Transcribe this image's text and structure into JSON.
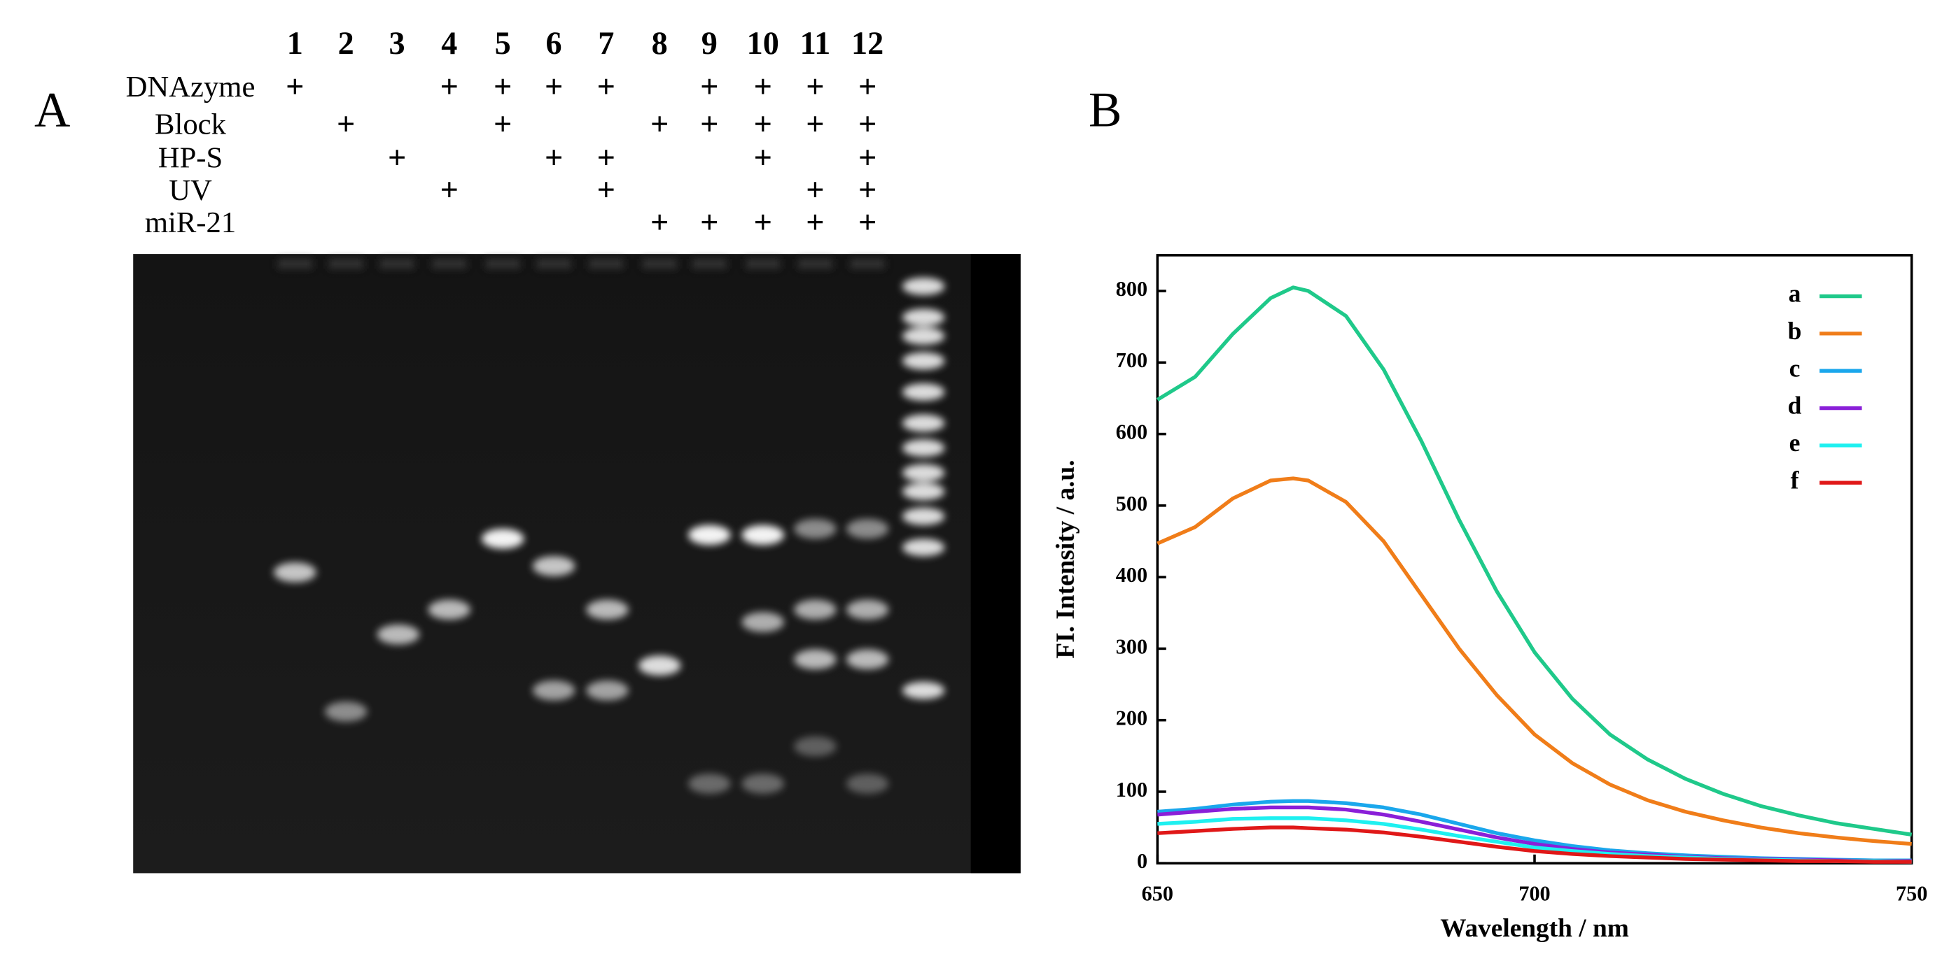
{
  "panel_labels": [
    "A",
    "B"
  ],
  "gel": {
    "lanes": [
      "1",
      "2",
      "3",
      "4",
      "5",
      "6",
      "7",
      "8",
      "9",
      "10",
      "11",
      "12"
    ],
    "rows": [
      {
        "name": "DNAzyme",
        "marks": [
          "+",
          null,
          null,
          "+",
          "+",
          "+",
          "+",
          null,
          "+",
          "+",
          "+",
          "+"
        ]
      },
      {
        "name": "Block",
        "marks": [
          null,
          "+",
          null,
          null,
          "+",
          null,
          null,
          "+",
          "+",
          "+",
          "+",
          "+"
        ]
      },
      {
        "name": "HP-S",
        "marks": [
          null,
          null,
          "+",
          null,
          null,
          "+",
          "+",
          null,
          null,
          "+",
          null,
          "+"
        ]
      },
      {
        "name": "UV",
        "marks": [
          null,
          null,
          null,
          "+",
          null,
          null,
          "+",
          null,
          null,
          null,
          "+",
          "+"
        ]
      },
      {
        "name": "miR-21",
        "marks": [
          null,
          null,
          null,
          null,
          null,
          null,
          null,
          "+",
          "+",
          "+",
          "+",
          "+"
        ]
      }
    ]
  },
  "chart_data": {
    "type": "line",
    "xlabel": "Wavelength / nm",
    "ylabel": "FI. Intensity / a.u.",
    "xlim": [
      650,
      750
    ],
    "ylim": [
      0,
      850
    ],
    "xticks": [
      650,
      700,
      750
    ],
    "yticks": [
      0,
      100,
      200,
      300,
      400,
      500,
      600,
      700,
      800
    ],
    "legend": "upper right",
    "x": [
      650,
      655,
      660,
      665,
      668,
      670,
      675,
      680,
      685,
      690,
      695,
      700,
      705,
      710,
      715,
      720,
      725,
      730,
      735,
      740,
      745,
      750
    ],
    "series": [
      {
        "name": "a",
        "color": "#1fc98a",
        "values": [
          648,
          680,
          740,
          790,
          805,
          800,
          765,
          690,
          590,
          480,
          380,
          295,
          230,
          180,
          145,
          118,
          97,
          80,
          67,
          56,
          48,
          40
        ]
      },
      {
        "name": "b",
        "color": "#f07d19",
        "values": [
          447,
          470,
          510,
          535,
          538,
          535,
          505,
          450,
          375,
          300,
          235,
          180,
          140,
          110,
          88,
          72,
          60,
          50,
          42,
          36,
          31,
          27
        ]
      },
      {
        "name": "c",
        "color": "#1aa7ec",
        "values": [
          72,
          76,
          82,
          86,
          87,
          87,
          84,
          78,
          68,
          55,
          42,
          32,
          24,
          18,
          14,
          11,
          9,
          7,
          6,
          5,
          4,
          4
        ]
      },
      {
        "name": "d",
        "color": "#8a1fd8",
        "values": [
          68,
          72,
          76,
          78,
          78,
          78,
          75,
          68,
          58,
          47,
          36,
          27,
          20,
          15,
          12,
          9,
          7,
          6,
          5,
          4,
          3,
          3
        ]
      },
      {
        "name": "e",
        "color": "#1ef0f0",
        "values": [
          55,
          58,
          62,
          63,
          63,
          63,
          60,
          55,
          47,
          38,
          30,
          22,
          17,
          13,
          10,
          8,
          6,
          5,
          4,
          3,
          3,
          2
        ]
      },
      {
        "name": "f",
        "color": "#e01818",
        "values": [
          42,
          45,
          48,
          50,
          50,
          49,
          47,
          43,
          37,
          30,
          23,
          17,
          13,
          10,
          8,
          6,
          5,
          4,
          3,
          3,
          2,
          2
        ]
      }
    ]
  }
}
